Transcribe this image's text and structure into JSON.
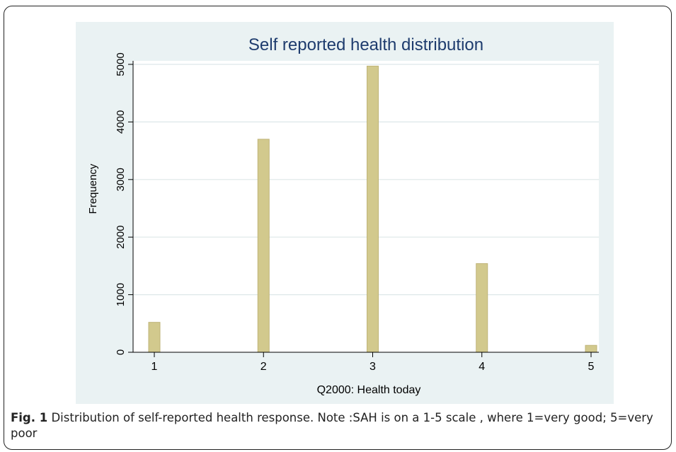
{
  "chart_data": {
    "type": "bar",
    "title": "Self reported health distribution",
    "xlabel": "Q2000: Health today",
    "ylabel": "Frequency",
    "categories": [
      "1",
      "2",
      "3",
      "4",
      "5"
    ],
    "x": [
      1,
      2,
      3,
      4,
      5
    ],
    "values": [
      520,
      3700,
      4970,
      1540,
      120
    ],
    "xlim": [
      1,
      5
    ],
    "ylim": [
      0,
      5000
    ],
    "y_ticks": [
      "0",
      "1000",
      "2000",
      "3000",
      "4000",
      "5000"
    ],
    "grid": true,
    "bar_color": "#d2c98d",
    "bar_edge_color": "#bfb478",
    "background_color": "#eaf2f3",
    "title_color": "#1e3c6e"
  },
  "figure": {
    "label": "Fig. 1",
    "caption": " Distribution of self-reported health response. Note :SAH is on a 1-5 scale , where 1=very good; 5=very poor"
  }
}
